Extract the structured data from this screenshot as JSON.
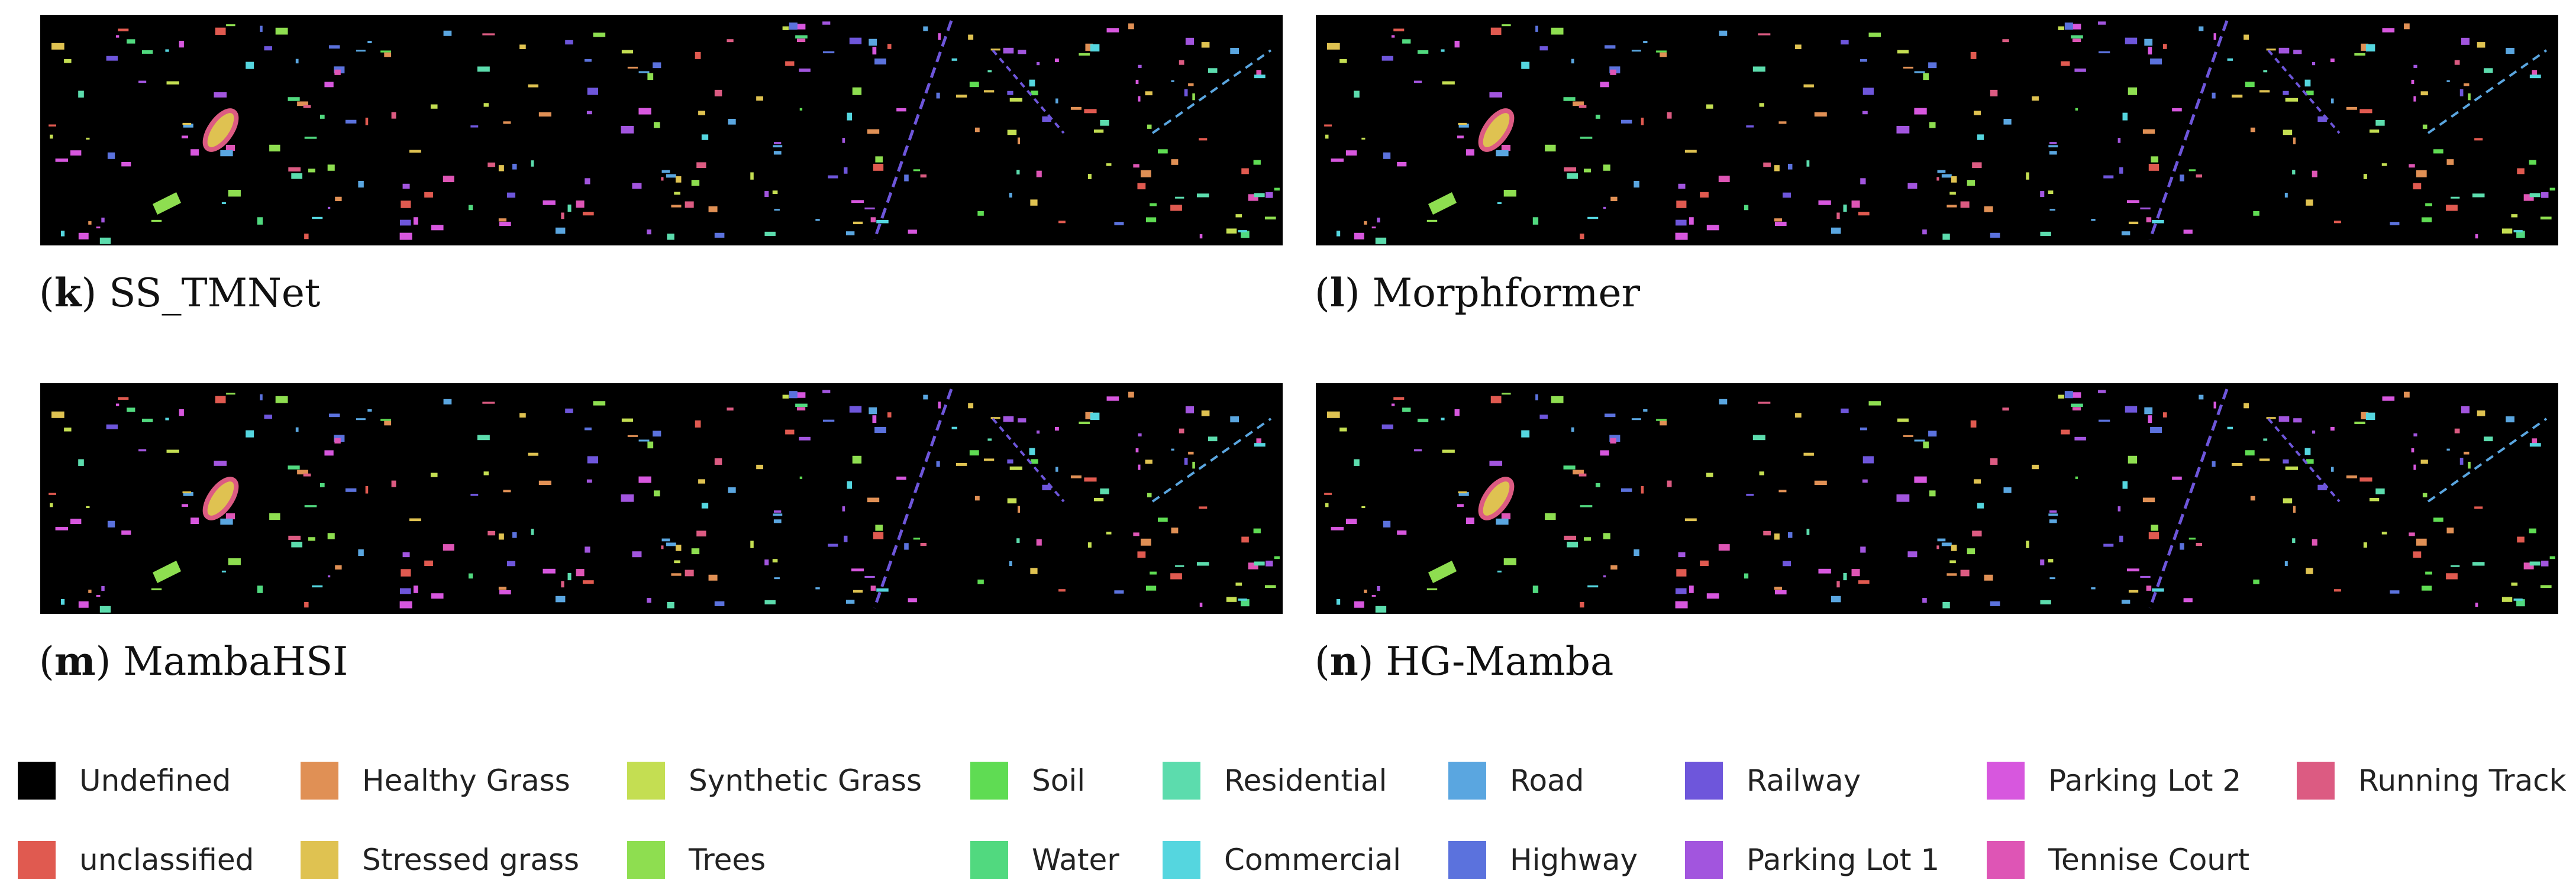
{
  "panels": [
    {
      "letter": "k",
      "name": "SS_TMNet"
    },
    {
      "letter": "l",
      "name": "Morphformer"
    },
    {
      "letter": "m",
      "name": "MambaHSI"
    },
    {
      "letter": "n",
      "name": "HG-Mamba"
    }
  ],
  "legend": [
    {
      "label": "Undefined",
      "color": "#000000"
    },
    {
      "label": "Healthy Grass",
      "color": "#e09055"
    },
    {
      "label": "Synthetic Grass",
      "color": "#c4de52"
    },
    {
      "label": "Soil",
      "color": "#5fdc53"
    },
    {
      "label": "Residential",
      "color": "#5cdcad"
    },
    {
      "label": "Road",
      "color": "#5aa6e0"
    },
    {
      "label": "Railway",
      "color": "#6e56db"
    },
    {
      "label": "Parking Lot 2",
      "color": "#d757de"
    },
    {
      "label": "Running Track",
      "color": "#dc5b82"
    },
    {
      "label": "unclassified",
      "color": "#e05a50"
    },
    {
      "label": "Stressed grass",
      "color": "#dfc251"
    },
    {
      "label": "Trees",
      "color": "#8ede50"
    },
    {
      "label": "Water",
      "color": "#51d97f"
    },
    {
      "label": "Commercial",
      "color": "#55d6df"
    },
    {
      "label": "Highway",
      "color": "#5b72dd"
    },
    {
      "label": "Parking Lot 1",
      "color": "#a255de"
    },
    {
      "label": "Tennise Court",
      "color": "#de55b5"
    }
  ]
}
